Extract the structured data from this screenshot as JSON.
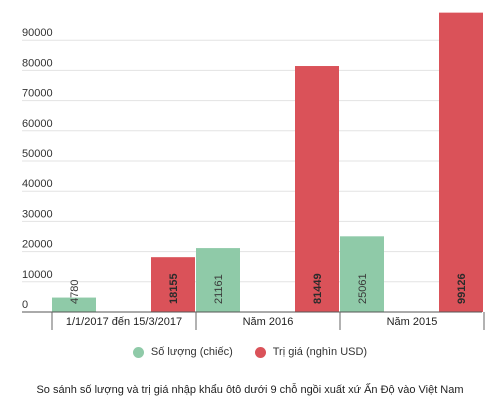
{
  "chart_data": {
    "type": "bar",
    "categories": [
      "1/1/2017 đến 15/3/2017",
      "Năm 2016",
      "Năm 2015"
    ],
    "series": [
      {
        "name": "Số lượng (chiếc)",
        "values": [
          4780,
          21161,
          25061
        ]
      },
      {
        "name": "Trị giá (nghìn USD)",
        "values": [
          18155,
          81449,
          99126
        ]
      }
    ],
    "title": "",
    "caption": "So sánh số lượng và trị giá nhập khẩu ôtô dưới 9 chỗ ngồi xuất xứ Ấn Độ vào Việt Nam",
    "ylim": [
      0,
      100000
    ],
    "yticks": [
      0,
      10000,
      20000,
      30000,
      40000,
      50000,
      60000,
      70000,
      80000,
      90000
    ],
    "grid": true,
    "legend_position": "bottom",
    "colors": {
      "quantity": "#8fcaa8",
      "value": "#da5259"
    }
  }
}
